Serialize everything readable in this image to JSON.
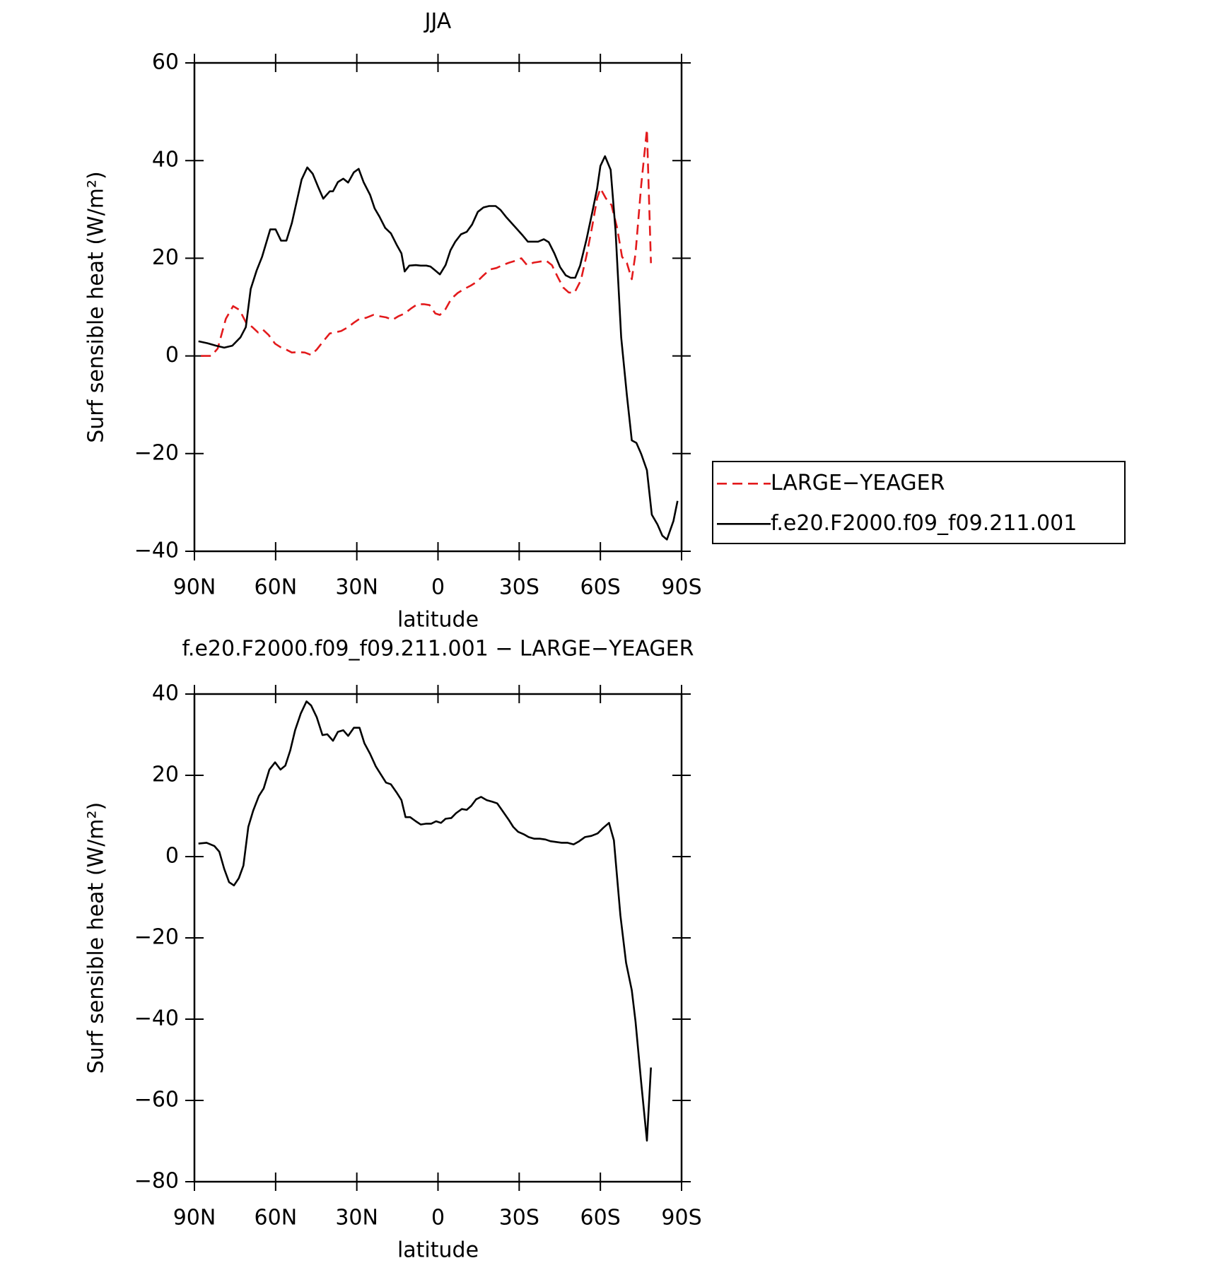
{
  "chart_data": [
    {
      "type": "line",
      "title": "JJA",
      "xlabel": "latitude",
      "ylabel": "Surf sensible heat (W/m²)",
      "xlim": [
        90,
        -90
      ],
      "xticks": [
        {
          "value": 90,
          "label": "90N"
        },
        {
          "value": 60,
          "label": "60N"
        },
        {
          "value": 30,
          "label": "30N"
        },
        0,
        {
          "value": -30,
          "label": "30S"
        },
        {
          "value": -60,
          "label": "60S"
        },
        {
          "value": -90,
          "label": "90S"
        }
      ],
      "ylim": [
        -40,
        60
      ],
      "yticks": [
        {
          "value": -40,
          "label": "−40"
        },
        {
          "value": -20,
          "label": "−20"
        },
        0,
        20,
        40,
        60
      ],
      "legend": "right",
      "series": [
        {
          "name": "LARGE−YEAGER",
          "color": "#e31a1c",
          "style": "dashed",
          "x": [
            87.6,
            83.8,
            81.4,
            78.4,
            75.7,
            73.3,
            71,
            68.6,
            66.5,
            64.7,
            62.6,
            60.2,
            58.2,
            56.1,
            54,
            51.6,
            49.2,
            46.9,
            44.8,
            42.4,
            40,
            38.2,
            35.8,
            33.5,
            31.1,
            29,
            26.6,
            23.9,
            21.3,
            19.2,
            16.8,
            14.7,
            12.3,
            10,
            7.6,
            5.2,
            3.1,
            1,
            -0.7,
            -2.8,
            -4.9,
            -7.3,
            -9.7,
            -12.1,
            -14.4,
            -16.8,
            -19.2,
            -21.6,
            -23.9,
            -26.3,
            -28.7,
            -30.8,
            -32.9,
            -35.3,
            -37.6,
            -40,
            -42.1,
            -44.2,
            -46.3,
            -48.3,
            -50.4,
            -52.8,
            -54.9,
            -57,
            -58.8,
            -60,
            -62,
            -64.1,
            -66.2,
            -68,
            -69.8,
            -71.6,
            -73,
            -75.1,
            -77.2,
            -78.7
          ],
          "values": [
            0,
            0,
            1.5,
            7.6,
            10.2,
            9.4,
            6.9,
            5.9,
            4.8,
            5.4,
            4.3,
            2.5,
            1.8,
            1.3,
            0.7,
            0.8,
            0.7,
            0.2,
            1.3,
            3,
            4.6,
            4.8,
            5.1,
            5.8,
            6.8,
            7.6,
            7.8,
            8.4,
            8.1,
            7.9,
            7.4,
            8.1,
            8.7,
            9.7,
            10.6,
            10.6,
            10.4,
            8.7,
            8.4,
            9.6,
            11.7,
            12.9,
            13.7,
            14.4,
            15.2,
            16.5,
            17.7,
            18,
            18.6,
            19.1,
            19.5,
            20,
            18.6,
            19.1,
            19.3,
            19.5,
            18.6,
            16.2,
            14,
            13,
            12.9,
            15.5,
            20.6,
            26.6,
            32.3,
            34.3,
            32.3,
            30.9,
            26.2,
            20.3,
            19,
            15.7,
            21,
            35.1,
            46.4,
            19
          ]
        },
        {
          "name": "f.e20.F2000.f09_f09.211.001",
          "color": "#000000",
          "style": "solid",
          "x": [
            88.5,
            85.2,
            82,
            79,
            76,
            73,
            71,
            69.2,
            67,
            65,
            62,
            60,
            58,
            56,
            54,
            50.4,
            48.3,
            46.3,
            44.2,
            42.4,
            40,
            38.8,
            37,
            35,
            33.2,
            31.1,
            29.3,
            27.5,
            25.1,
            23.4,
            21.6,
            19.5,
            17.4,
            15.3,
            13.5,
            12.3,
            10.6,
            8.2,
            6.4,
            4.3,
            2.8,
            1,
            -0.7,
            -2.8,
            -4.6,
            -6.4,
            -8.5,
            -10.6,
            -12.6,
            -14.7,
            -16.8,
            -18.9,
            -21.3,
            -23.1,
            -25.1,
            -27.2,
            -29.3,
            -31.1,
            -33.2,
            -35.3,
            -37,
            -39.1,
            -40.9,
            -43,
            -45.1,
            -47.2,
            -49,
            -50.7,
            -52.5,
            -54.9,
            -57,
            -58.8,
            -60,
            -61.7,
            -63.8,
            -65.6,
            -67.7,
            -69.8,
            -71.6,
            -73.3,
            -75.1,
            -77.2,
            -79,
            -81.1,
            -82.9,
            -84.6,
            -87,
            -88.5
          ],
          "values": [
            3,
            2.6,
            2.1,
            1.7,
            2.1,
            3.8,
            5.9,
            13.7,
            17.5,
            20.3,
            25.9,
            25.9,
            23.6,
            23.6,
            27.2,
            36.1,
            38.6,
            37.3,
            34.5,
            32.2,
            33.7,
            33.7,
            35.6,
            36.3,
            35.5,
            37.6,
            38.3,
            35.6,
            33,
            30.2,
            28.5,
            26.2,
            25.1,
            22.8,
            21,
            17.3,
            18.5,
            18.6,
            18.5,
            18.5,
            18.3,
            17.5,
            16.7,
            18.6,
            21.6,
            23.4,
            24.9,
            25.4,
            26.9,
            29.5,
            30.4,
            30.7,
            30.7,
            29.9,
            28.5,
            27.2,
            25.9,
            24.8,
            23.4,
            23.4,
            23.4,
            23.9,
            23.3,
            21,
            18.2,
            16.5,
            16,
            16,
            18.5,
            23.9,
            29.4,
            34.3,
            38.9,
            40.9,
            38.1,
            25.7,
            3.8,
            -8.1,
            -17.3,
            -17.8,
            -20.1,
            -23.4,
            -32.5,
            -34.5,
            -36.8,
            -37.6,
            -33.8,
            -29.7
          ]
        }
      ]
    },
    {
      "type": "line",
      "title": "f.e20.F2000.f09_f09.211.001 − LARGE−YEAGER",
      "xlabel": "latitude",
      "ylabel": "Surf sensible heat (W/m²)",
      "xlim": [
        90,
        -90
      ],
      "xticks": [
        {
          "value": 90,
          "label": "90N"
        },
        {
          "value": 60,
          "label": "60N"
        },
        {
          "value": 30,
          "label": "30N"
        },
        0,
        {
          "value": -30,
          "label": "30S"
        },
        {
          "value": -60,
          "label": "60S"
        },
        {
          "value": -90,
          "label": "90S"
        }
      ],
      "ylim": [
        -80,
        40
      ],
      "yticks": [
        {
          "value": -80,
          "label": "−80"
        },
        {
          "value": -60,
          "label": "−60"
        },
        {
          "value": -40,
          "label": "−40"
        },
        {
          "value": -20,
          "label": "−20"
        },
        0,
        20,
        40
      ],
      "color": "#000000",
      "x": [
        88.5,
        85.5,
        82.6,
        80.8,
        79,
        77.2,
        75.4,
        73.6,
        71.9,
        70.1,
        68.3,
        66.2,
        64.4,
        62.3,
        60.2,
        58.2,
        56.4,
        54.6,
        52.8,
        50.7,
        48.6,
        46.9,
        44.8,
        42.7,
        40.9,
        38.8,
        37,
        35,
        33.2,
        31.1,
        29,
        27.2,
        25.1,
        23,
        21.3,
        19.2,
        17.4,
        15.3,
        13.5,
        12,
        10.3,
        8.2,
        6.4,
        4.3,
        2.5,
        0.7,
        -1.1,
        -2.8,
        -4.9,
        -6.7,
        -8.8,
        -10.6,
        -12.3,
        -14.1,
        -15.9,
        -18,
        -20.1,
        -21.9,
        -24,
        -26.1,
        -27.8,
        -29.6,
        -31.7,
        -33.5,
        -35.6,
        -37.6,
        -39.7,
        -41.5,
        -43.6,
        -45.7,
        -47.8,
        -50.1,
        -52.2,
        -54.3,
        -56.7,
        -59,
        -61.1,
        -63.2,
        -65,
        -67.4,
        -69.5,
        -71.6,
        -73,
        -75.1,
        -77.2,
        -78.7
      ],
      "values": [
        3.2,
        3.4,
        2.6,
        1.2,
        -3,
        -6.3,
        -7.1,
        -5.3,
        -2.2,
        7.3,
        11.3,
        14.9,
        16.8,
        21.4,
        23.2,
        21.4,
        22.4,
        26.1,
        31.1,
        35.2,
        38.2,
        37.2,
        34.3,
        29.9,
        30.1,
        28.5,
        30.7,
        31.1,
        29.7,
        31.7,
        31.7,
        27.9,
        25.3,
        22.2,
        20.4,
        18.2,
        17.8,
        15.8,
        13.9,
        9.7,
        9.7,
        8.7,
        7.9,
        8.1,
        8.1,
        8.7,
        8.3,
        9.3,
        9.5,
        10.7,
        11.7,
        11.5,
        12.5,
        14.1,
        14.7,
        13.9,
        13.5,
        13.1,
        11.1,
        9.1,
        7.3,
        6.1,
        5.5,
        4.8,
        4.4,
        4.4,
        4.2,
        3.8,
        3.6,
        3.4,
        3.4,
        3,
        3.8,
        4.8,
        5.1,
        5.7,
        7.1,
        8.3,
        4,
        -14.5,
        -26.1,
        -32.9,
        -40.6,
        -55.8,
        -69.9,
        -51.9
      ]
    }
  ]
}
